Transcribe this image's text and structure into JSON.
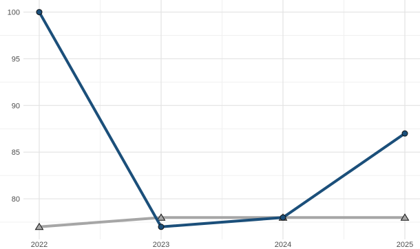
{
  "chart_data": {
    "type": "line",
    "x": [
      "2022",
      "2023",
      "2024",
      "2025"
    ],
    "series": [
      {
        "values": [
          100,
          77,
          78,
          87
        ],
        "color": "#1b4f7a",
        "marker": "circle"
      },
      {
        "values": [
          77,
          78,
          78,
          78
        ],
        "color": "#a6a6a6",
        "marker": "triangle"
      }
    ],
    "y_ticks": [
      80,
      85,
      90,
      95,
      100
    ],
    "ylim": [
      76.1,
      101
    ],
    "grid": true,
    "legend": "none",
    "title": "",
    "xlabel": "",
    "ylabel": ""
  }
}
